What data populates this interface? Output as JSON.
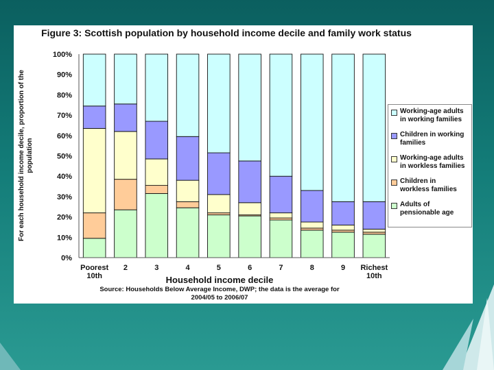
{
  "chart_data": {
    "type": "bar",
    "stacked": true,
    "title": "Figure 3: Scottish population by household income decile and family work status",
    "xlabel": "Household income decile",
    "ylabel": "For each household income decile, proportion of the population",
    "categories": [
      "Poorest 10th",
      "2",
      "3",
      "4",
      "5",
      "6",
      "7",
      "8",
      "9",
      "Richest 10th"
    ],
    "yticks": [
      "0%",
      "10%",
      "20%",
      "30%",
      "40%",
      "50%",
      "60%",
      "70%",
      "80%",
      "90%",
      "100%"
    ],
    "ylim": [
      0,
      100
    ],
    "series": [
      {
        "name": "Adults of pensionable age",
        "color": "#ccffcc",
        "values": [
          9.5,
          23.5,
          31.5,
          24.5,
          21,
          20.5,
          18.5,
          13.5,
          12.5,
          11.5
        ]
      },
      {
        "name": "Children in workless families",
        "color": "#ffcc99",
        "values": [
          12.5,
          15,
          4,
          3,
          1,
          0.5,
          1,
          1,
          1,
          1
        ]
      },
      {
        "name": "Working-age adults in workless families",
        "color": "#ffffcc",
        "values": [
          41.5,
          23.5,
          13,
          10.5,
          9,
          6,
          2.5,
          3,
          2.5,
          1.5
        ]
      },
      {
        "name": "Children in working families",
        "color": "#9999ff",
        "values": [
          11,
          13.5,
          18.5,
          21.5,
          20.5,
          20.5,
          18,
          15.5,
          11.5,
          13.5
        ]
      },
      {
        "name": "Working-age adults in working families",
        "color": "#ccffff",
        "values": [
          25.5,
          24.5,
          33,
          40.5,
          48.5,
          52.5,
          60,
          67,
          72.5,
          72.5
        ]
      }
    ],
    "legend_position": "right",
    "legend": [
      "Working-age adults\nin working families",
      "Children in working\nfamilies",
      "Working-age adults\nin workless families",
      "Children in\nworkless families",
      "Adults of\npensionable age"
    ],
    "legend_colors": [
      "#ccffff",
      "#9999ff",
      "#ffffcc",
      "#ffcc99",
      "#ccffcc"
    ],
    "source": "Source: Households Below Average Income, DWP; the data is the average for\n2004/05 to 2006/07"
  }
}
